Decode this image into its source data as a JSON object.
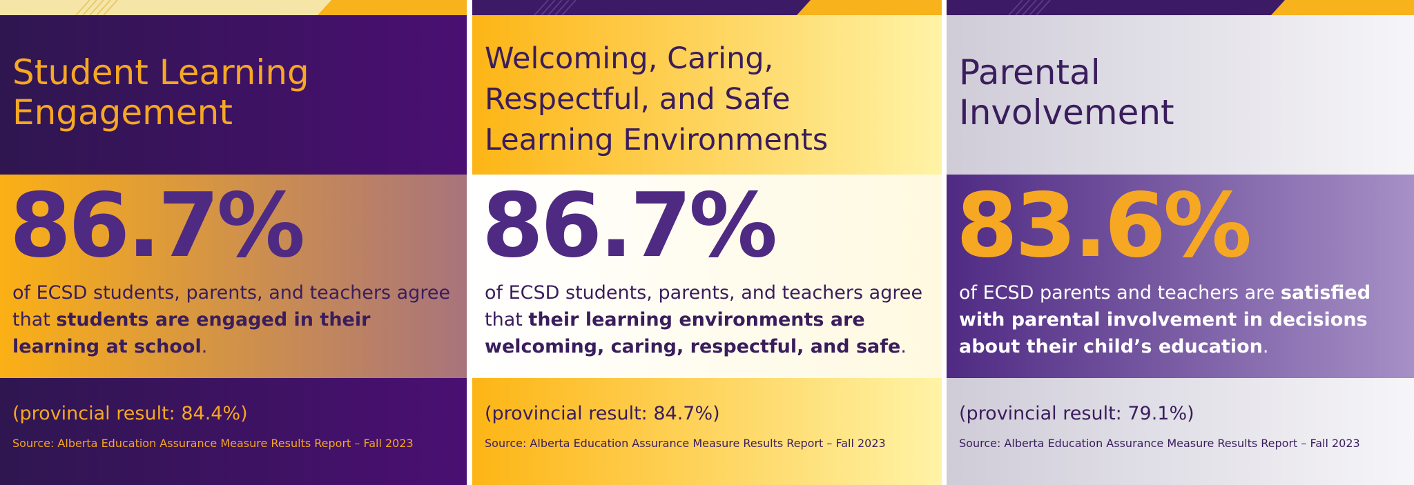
{
  "panels": [
    {
      "title": "Student Learning Engagement",
      "stat": "86.7%",
      "description": [
        {
          "text": "of ECSD students, parents, and teachers agree that ",
          "bold": false
        },
        {
          "text": "students are engaged in their learning at school",
          "bold": true
        },
        {
          "text": ".",
          "bold": false
        }
      ],
      "provincial": "(provincial result: 84.4%)",
      "source": "Source: Alberta Education Assurance Measure Results Report – Fall 2023"
    },
    {
      "title": "Welcoming, Caring, Respectful, and Safe Learning Environments",
      "stat": "86.7%",
      "description": [
        {
          "text": "of ECSD students, parents, and teachers agree that ",
          "bold": false
        },
        {
          "text": "their learning environments are welcoming, caring, respectful, and safe",
          "bold": true
        },
        {
          "text": ".",
          "bold": false
        }
      ],
      "provincial": "(provincial result: 84.7%)",
      "source": "Source: Alberta Education Assurance Measure Results Report – Fall 2023"
    },
    {
      "title": "Parental Involvement",
      "stat": "83.6%",
      "description": [
        {
          "text": "of ECSD parents and teachers are ",
          "bold": false
        },
        {
          "text": "satisfied with parental involvement in decisions about their child’s education",
          "bold": true
        },
        {
          "text": ".",
          "bold": false
        }
      ],
      "provincial": "(provincial result: 79.1%)",
      "source": "Source: Alberta Education Assurance Measure Results Report – Fall 2023"
    }
  ]
}
